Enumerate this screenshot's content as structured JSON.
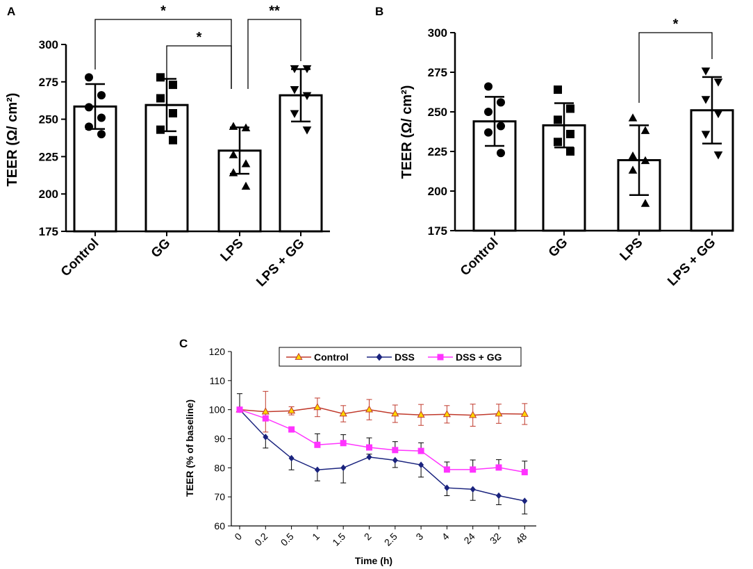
{
  "chart_data": [
    {
      "panel": "A",
      "type": "bar",
      "categories": [
        "Control",
        "GG",
        "LPS",
        "LPS + GG"
      ],
      "values": [
        258.5,
        259.5,
        229,
        266
      ],
      "errors": [
        15,
        17.5,
        15.5,
        17.5
      ],
      "points": [
        [
          278,
          266,
          258,
          251,
          245,
          240
        ],
        [
          278,
          273,
          264,
          254,
          243,
          236
        ],
        [
          245,
          244,
          226,
          220,
          214,
          205
        ],
        [
          284,
          284,
          270,
          266,
          254,
          243
        ]
      ],
      "markers": [
        "circle",
        "square",
        "triangle-up",
        "triangle-down"
      ],
      "ylabel": "TEER (Ω/ cm²)",
      "ylim": [
        175,
        300
      ],
      "yticks": [
        175,
        200,
        225,
        250,
        275,
        300
      ],
      "significance": [
        {
          "from": "Control",
          "to": "LPS",
          "label": "*",
          "level": 2
        },
        {
          "from": "GG",
          "to": "LPS",
          "label": "*",
          "level": 1
        },
        {
          "from": "LPS",
          "to": "LPS + GG",
          "label": "**",
          "level": 2
        }
      ]
    },
    {
      "panel": "B",
      "type": "bar",
      "categories": [
        "Control",
        "GG",
        "LPS",
        "LPS + GG"
      ],
      "values": [
        244,
        241.5,
        219.5,
        251
      ],
      "errors": [
        15.5,
        14,
        22,
        21
      ],
      "points": [
        [
          266,
          256,
          250,
          241,
          237,
          224
        ],
        [
          264,
          252,
          245,
          236,
          231,
          225
        ],
        [
          246,
          238,
          222,
          219,
          213,
          192
        ],
        [
          276,
          269,
          258,
          249,
          236,
          223
        ]
      ],
      "markers": [
        "circle",
        "square",
        "triangle-up",
        "triangle-down"
      ],
      "ylabel": "TEER (Ω/ cm²)",
      "ylim": [
        175,
        300
      ],
      "yticks": [
        175,
        200,
        225,
        250,
        275,
        300
      ],
      "significance": [
        {
          "from": "LPS",
          "to": "LPS + GG",
          "label": "*",
          "level": 1
        }
      ]
    },
    {
      "panel": "C",
      "type": "line",
      "x": [
        "0",
        "0.2",
        "0.5",
        "1",
        "1.5",
        "2",
        "2.5",
        "3",
        "4",
        "24",
        "32",
        "48"
      ],
      "xlabel": "Time (h)",
      "ylabel": "TEER (% of baseline)",
      "ylim": [
        60,
        120
      ],
      "yticks": [
        60,
        70,
        80,
        90,
        100,
        110,
        120
      ],
      "series": [
        {
          "name": "Control",
          "color": "#c0392b",
          "fill": "#ffd700",
          "marker": "triangle",
          "values": [
            100,
            99.3,
            99.6,
            100.8,
            98.6,
            100,
            98.6,
            98.2,
            98.4,
            98.1,
            98.6,
            98.5
          ],
          "errors": [
            0,
            7,
            1.4,
            3.2,
            2.8,
            3.5,
            3,
            3.6,
            3,
            3.8,
            3.3,
            3.6
          ]
        },
        {
          "name": "DSS",
          "color": "#1a237e",
          "fill": "#1a237e",
          "marker": "diamond",
          "values": [
            100,
            90.6,
            83.3,
            79.3,
            80,
            83.7,
            82.6,
            81,
            73.1,
            72.6,
            70.4,
            68.6
          ],
          "errors": [
            5.5,
            3.8,
            4,
            3.8,
            5.2,
            1,
            2.5,
            4.2,
            2.7,
            3.8,
            3.1,
            4.5
          ]
        },
        {
          "name": "DSS + GG",
          "color": "#ff33ff",
          "fill": "#ff33ff",
          "marker": "square",
          "values": [
            100,
            97,
            93.2,
            87.9,
            88.5,
            87,
            86.1,
            85.8,
            79.4,
            79.4,
            80.1,
            78.5
          ],
          "errors": [
            0,
            0,
            0,
            3.8,
            2.9,
            3.3,
            2.9,
            2.8,
            2.6,
            3.3,
            2.7,
            3.8
          ]
        }
      ]
    }
  ]
}
